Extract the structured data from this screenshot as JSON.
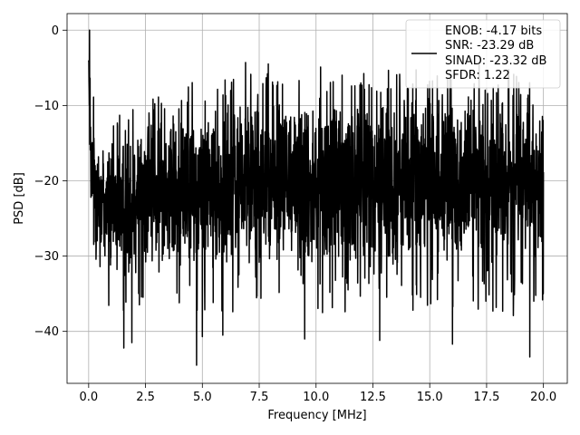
{
  "chart_data": {
    "type": "line",
    "title": "",
    "xlabel": "Frequency [MHz]",
    "ylabel": "PSD [dB]",
    "xlim": [
      -0.95,
      21.05
    ],
    "ylim": [
      -46.9,
      2.2
    ],
    "xticks": [
      0.0,
      2.5,
      5.0,
      7.5,
      10.0,
      12.5,
      15.0,
      17.5,
      20.0
    ],
    "xtick_labels": [
      "0.0",
      "2.5",
      "5.0",
      "7.5",
      "10.0",
      "12.5",
      "15.0",
      "17.5",
      "20.0"
    ],
    "yticks": [
      0,
      -10,
      -20,
      -30,
      -40
    ],
    "ytick_labels": [
      "0",
      "−10",
      "−20",
      "−30",
      "−40"
    ],
    "grid": true,
    "legend_position": "top-right",
    "series": [
      {
        "legend_lines": [
          "ENOB: -4.17 bits",
          "SNR: -23.29 dB",
          "SINAD: -23.32 dB",
          "SFDR: 1.22"
        ],
        "color": "#000000",
        "x_range": [
          0.0,
          20.0
        ],
        "description_points": {
          "x": [
            0.0,
            0.04,
            0.1,
            0.5,
            1.0,
            1.5,
            2.0,
            3.0,
            4.0,
            5.0,
            6.0,
            7.0,
            8.0,
            9.0,
            10.0,
            11.0,
            12.0,
            13.0,
            14.0,
            15.0,
            16.0,
            17.0,
            18.0,
            19.0,
            20.0
          ],
          "upper_envelope": [
            0.0,
            -8.0,
            -10.0,
            -13.0,
            -14.0,
            -13.0,
            -12.0,
            -11.0,
            -10.0,
            -9.5,
            -9.0,
            -8.5,
            -8.0,
            -8.0,
            -8.0,
            -8.0,
            -8.0,
            -8.0,
            -8.0,
            -8.0,
            -8.0,
            -8.0,
            -8.0,
            -8.0,
            -8.0
          ],
          "lower_envelope": [
            -4.0,
            -20.0,
            -28.0,
            -32.0,
            -33.0,
            -33.0,
            -32.0,
            -32.0,
            -32.0,
            -32.0,
            -32.0,
            -32.0,
            -32.0,
            -32.0,
            -32.0,
            -32.0,
            -32.0,
            -32.0,
            -32.0,
            -32.0,
            -32.0,
            -32.0,
            -32.0,
            -32.0,
            -32.0
          ]
        },
        "notable_minima": [
          {
            "x": 1.55,
            "y": -42.2
          },
          {
            "x": 1.9,
            "y": -41.5
          },
          {
            "x": 4.75,
            "y": -44.5
          },
          {
            "x": 5.0,
            "y": -40.7
          },
          {
            "x": 5.9,
            "y": -40.5
          },
          {
            "x": 9.5,
            "y": -41.0
          },
          {
            "x": 12.8,
            "y": -41.2
          },
          {
            "x": 16.0,
            "y": -41.7
          },
          {
            "x": 19.4,
            "y": -43.4
          }
        ],
        "notable_maxima": [
          {
            "x": 0.04,
            "y": 0.0
          },
          {
            "x": 6.9,
            "y": -4.3
          },
          {
            "x": 7.9,
            "y": -4.5
          },
          {
            "x": 10.2,
            "y": -4.9
          }
        ]
      }
    ]
  }
}
